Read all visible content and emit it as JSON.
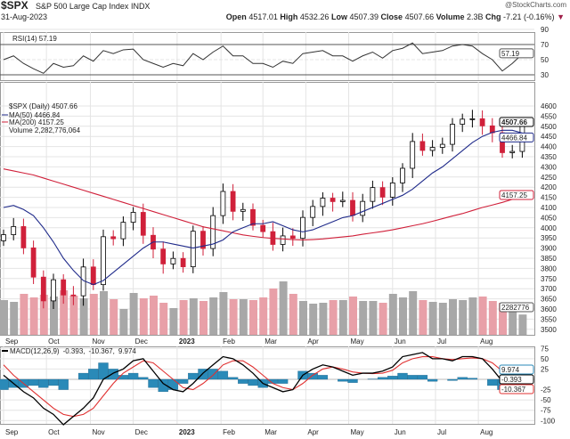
{
  "header": {
    "symbol": "$SPX",
    "name": "S&P 500 Large Cap Index",
    "exchange": "INDX",
    "date": "31-Aug-2023",
    "credit": "@StockCharts.com",
    "open_label": "Open",
    "open": "4517.01",
    "high_label": "High",
    "high": "4532.26",
    "low_label": "Low",
    "low": "4507.39",
    "close_label": "Close",
    "close": "4507.66",
    "volume_label": "Volume",
    "volume": "2.3B",
    "chg_label": "Chg",
    "chg": "-7.21 (-0.16%)",
    "chg_icon": "down-triangle-icon"
  },
  "colors": {
    "up": "#000000",
    "down": "#d0203a",
    "ma50": "#1f2a8a",
    "ma200": "#d0203a",
    "volume_up": "#a8a8a8",
    "volume_down": "#e8a0a8",
    "macd": "#000000",
    "signal": "#e03030",
    "histogram": "#2a8ab8",
    "rsi": "#333333"
  },
  "chart_data": [
    {
      "type": "line",
      "panel": "rsi",
      "legend": "RSI(14) 57.19",
      "last_label": "57.19",
      "ylim": [
        10,
        100
      ],
      "yticks": [
        "90",
        "70",
        "50",
        "30"
      ],
      "values": [
        50,
        55,
        45,
        38,
        32,
        45,
        40,
        42,
        55,
        48,
        62,
        58,
        63,
        64,
        50,
        45,
        40,
        45,
        42,
        58,
        50,
        60,
        68,
        55,
        55,
        45,
        45,
        40,
        48,
        45,
        58,
        60,
        62,
        55,
        55,
        48,
        55,
        60,
        52,
        62,
        65,
        72,
        58,
        60,
        62,
        68,
        70,
        68,
        58,
        50,
        35,
        45,
        57.19
      ]
    },
    {
      "type": "candlestick",
      "panel": "price",
      "legend": {
        "price": "$SPX (Daily) 4507.66",
        "ma50": "MA(50) 4466.84",
        "ma200": "MA(200) 4157.25",
        "volume": "Volume 2,282,776,064"
      },
      "last_labels": {
        "close": "4507.66",
        "ma50": "4466.84",
        "ma200": "4157.25",
        "volume": "2282776"
      },
      "ylim": [
        3450,
        4650
      ],
      "yticks": [
        "4600",
        "4550",
        "4500",
        "4450",
        "4400",
        "4350",
        "4300",
        "4250",
        "4200",
        "4150",
        "4100",
        "4050",
        "4000",
        "3950",
        "3900",
        "3850",
        "3800",
        "3750",
        "3700",
        "3650",
        "3600",
        "3550",
        "3500"
      ],
      "x_labels": [
        {
          "label": "Sep",
          "idx": 0
        },
        {
          "label": "Oct",
          "idx": 4.3
        },
        {
          "label": "Nov",
          "idx": 8.7
        },
        {
          "label": "Dec",
          "idx": 13
        },
        {
          "label": "2023",
          "idx": 17.4
        },
        {
          "label": "Feb",
          "idx": 21.8
        },
        {
          "label": "Mar",
          "idx": 26
        },
        {
          "label": "Apr",
          "idx": 30.3
        },
        {
          "label": "May",
          "idx": 34.6
        },
        {
          "label": "Jun",
          "idx": 39
        },
        {
          "label": "Jul",
          "idx": 43.3
        },
        {
          "label": "Aug",
          "idx": 47.6
        }
      ],
      "close": [
        3966,
        4006,
        3901,
        3757,
        3640,
        3744,
        3669,
        3665,
        3807,
        3720,
        3956,
        3946,
        4027,
        4076,
        3963,
        3895,
        3822,
        3849,
        3808,
        3983,
        3898,
        4060,
        4179,
        4081,
        4090,
        4012,
        3981,
        3918,
        3960,
        3948,
        4051,
        4105,
        4146,
        4129,
        4135,
        4061,
        4130,
        4198,
        4151,
        4221,
        4293,
        4425,
        4381,
        4396,
        4411,
        4510,
        4535,
        4537,
        4502,
        4468,
        4370,
        4376,
        4507.66
      ],
      "ma50": [
        4100,
        4110,
        4090,
        4060,
        4000,
        3930,
        3850,
        3790,
        3740,
        3720,
        3740,
        3780,
        3820,
        3860,
        3900,
        3930,
        3930,
        3920,
        3910,
        3900,
        3910,
        3920,
        3940,
        3980,
        4000,
        4020,
        4020,
        4030,
        4010,
        3990,
        3980,
        3990,
        4010,
        4030,
        4050,
        4060,
        4080,
        4100,
        4120,
        4140,
        4160,
        4190,
        4230,
        4270,
        4300,
        4340,
        4380,
        4420,
        4450,
        4470,
        4480,
        4480,
        4466.84
      ],
      "ma200": [
        4290,
        4280,
        4270,
        4260,
        4245,
        4230,
        4215,
        4200,
        4185,
        4170,
        4155,
        4140,
        4125,
        4110,
        4095,
        4080,
        4065,
        4050,
        4035,
        4020,
        4005,
        3995,
        3985,
        3975,
        3965,
        3958,
        3952,
        3948,
        3945,
        3942,
        3940,
        3942,
        3945,
        3950,
        3955,
        3960,
        3968,
        3975,
        3982,
        3990,
        4000,
        4010,
        4020,
        4032,
        4045,
        4058,
        4070,
        4085,
        4100,
        4112,
        4125,
        4140,
        4157.25
      ],
      "volume_billions": [
        3.9,
        3.7,
        4.6,
        4.2,
        4.5,
        4.3,
        5.0,
        4.4,
        4.1,
        4.6,
        4.9,
        4.0,
        2.9,
        4.7,
        4.1,
        4.4,
        3.6,
        3.0,
        3.9,
        4.1,
        3.8,
        4.2,
        4.8,
        4.0,
        4.0,
        3.9,
        4.2,
        5.2,
        6.0,
        4.6,
        3.8,
        3.5,
        3.6,
        3.9,
        3.9,
        4.3,
        3.8,
        3.8,
        3.6,
        4.6,
        4.2,
        4.9,
        3.9,
        3.7,
        3.6,
        4.0,
        3.9,
        4.2,
        4.3,
        3.8,
        3.6,
        3.6,
        2.28
      ]
    },
    {
      "type": "line",
      "panel": "macd",
      "legend": {
        "name": "MACD(12,26,9)",
        "macd": "-0.393,",
        "signal": "-10.367,",
        "hist": "9.974"
      },
      "last_labels": {
        "macd": "-0.393",
        "signal": "-10.367",
        "hist": "9.974"
      },
      "ylim": [
        -115,
        85
      ],
      "yticks": [
        "75",
        "50",
        "25",
        "-25",
        "-50",
        "-75",
        "-100"
      ],
      "macd": [
        10,
        -10,
        -30,
        -45,
        -70,
        -85,
        -110,
        -90,
        -70,
        -45,
        0,
        15,
        25,
        45,
        50,
        20,
        -10,
        -25,
        -30,
        -10,
        15,
        35,
        55,
        50,
        35,
        15,
        -10,
        -20,
        -30,
        -25,
        10,
        25,
        35,
        30,
        20,
        10,
        15,
        15,
        20,
        30,
        55,
        60,
        65,
        50,
        50,
        45,
        55,
        55,
        50,
        25,
        -5,
        -20,
        -0.393
      ],
      "signal": [
        35,
        10,
        -10,
        -30,
        -50,
        -70,
        -85,
        -90,
        -85,
        -70,
        -40,
        -10,
        15,
        30,
        45,
        40,
        20,
        0,
        -20,
        -25,
        -10,
        10,
        35,
        45,
        45,
        30,
        10,
        -10,
        -20,
        -25,
        -10,
        10,
        25,
        30,
        25,
        18,
        15,
        14,
        15,
        22,
        40,
        50,
        55,
        55,
        50,
        48,
        50,
        52,
        50,
        40,
        20,
        0,
        -10.367
      ]
    }
  ]
}
